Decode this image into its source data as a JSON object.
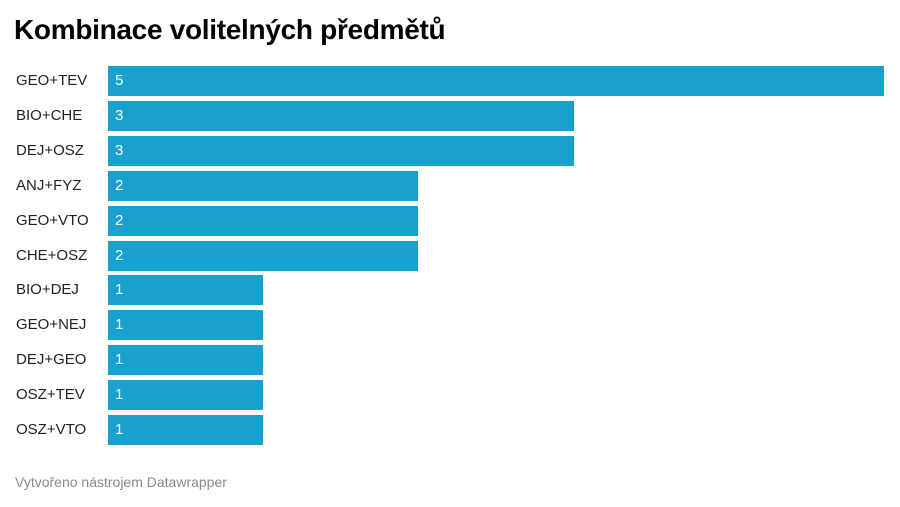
{
  "title": "Kombinace volitelných předmětů",
  "footer": "Vytvořeno nástrojem Datawrapper",
  "colors": {
    "bar": "#18a1cd",
    "label_text": "#222222",
    "value_text": "#ffffff",
    "footer_text": "#8a8a8a"
  },
  "chart_data": {
    "type": "bar",
    "orientation": "horizontal",
    "title": "Kombinace volitelných předmětů",
    "categories": [
      "GEO+TEV",
      "BIO+CHE",
      "DEJ+OSZ",
      "ANJ+FYZ",
      "GEO+VTO",
      "CHE+OSZ",
      "BIO+DEJ",
      "GEO+NEJ",
      "DEJ+GEO",
      "OSZ+TEV",
      "OSZ+VTO"
    ],
    "values": [
      5,
      3,
      3,
      2,
      2,
      2,
      1,
      1,
      1,
      1,
      1
    ],
    "xlim": [
      0,
      5
    ],
    "xlabel": "",
    "ylabel": "",
    "grid": false,
    "data_labels": "inside-start"
  }
}
